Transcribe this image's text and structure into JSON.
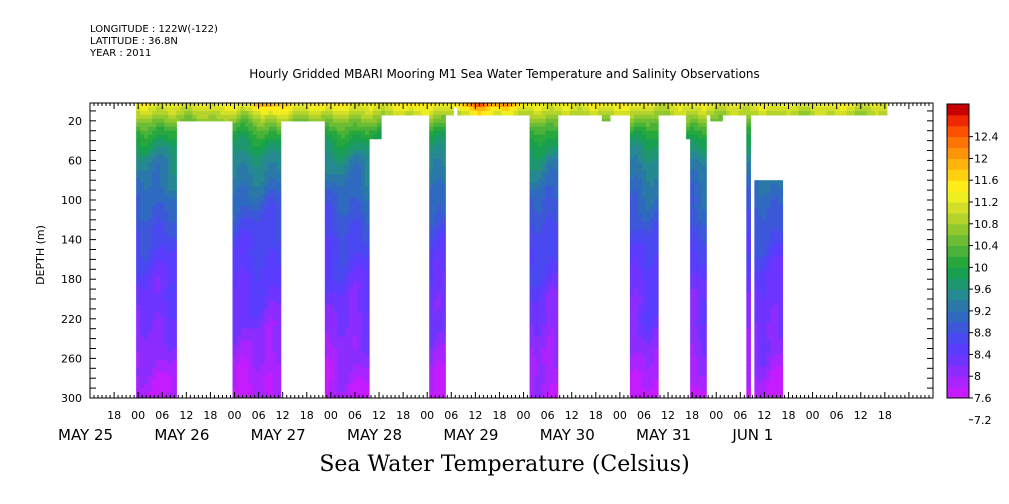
{
  "header": {
    "longitude": "LONGITUDE : 122W(-122)",
    "latitude": "LATITUDE : 36.8N",
    "year": "YEAR : 2011"
  },
  "chart_data": {
    "type": "heatmap",
    "title": "Hourly Gridded MBARI Mooring M1 Sea Water Temperature and Salinity Observations",
    "footer_title": "Sea Water Temperature (Celsius)",
    "ylabel": "DEPTH (m)",
    "ylim": [
      300,
      2
    ],
    "y_ticks": [
      20,
      60,
      100,
      140,
      180,
      220,
      260,
      300
    ],
    "x_unit": "hours since 2011-05-25 00:00",
    "xlim": [
      -12,
      198
    ],
    "x_hour_ticks": [
      {
        "h": -6,
        "label": "18"
      },
      {
        "h": 0,
        "label": "00"
      },
      {
        "h": 6,
        "label": "06"
      },
      {
        "h": 12,
        "label": "12"
      },
      {
        "h": 18,
        "label": "18"
      },
      {
        "h": 24,
        "label": "00"
      },
      {
        "h": 30,
        "label": "06"
      },
      {
        "h": 36,
        "label": "12"
      },
      {
        "h": 42,
        "label": "18"
      },
      {
        "h": 48,
        "label": "00"
      },
      {
        "h": 54,
        "label": "06"
      },
      {
        "h": 60,
        "label": "12"
      },
      {
        "h": 66,
        "label": "18"
      },
      {
        "h": 72,
        "label": "00"
      },
      {
        "h": 78,
        "label": "06"
      },
      {
        "h": 84,
        "label": "12"
      },
      {
        "h": 90,
        "label": "18"
      },
      {
        "h": 96,
        "label": "00"
      },
      {
        "h": 102,
        "label": "06"
      },
      {
        "h": 108,
        "label": "12"
      },
      {
        "h": 114,
        "label": "18"
      },
      {
        "h": 120,
        "label": "00"
      },
      {
        "h": 126,
        "label": "06"
      },
      {
        "h": 132,
        "label": "12"
      },
      {
        "h": 138,
        "label": "18"
      },
      {
        "h": 144,
        "label": "00"
      },
      {
        "h": 150,
        "label": "06"
      },
      {
        "h": 156,
        "label": "12"
      },
      {
        "h": 162,
        "label": "18"
      },
      {
        "h": 168,
        "label": "00"
      },
      {
        "h": 174,
        "label": "06"
      },
      {
        "h": 180,
        "label": "12"
      },
      {
        "h": 186,
        "label": "18"
      }
    ],
    "x_date_labels": [
      {
        "h": -12,
        "label": "MAY 25"
      },
      {
        "h": 12,
        "label": "MAY 26"
      },
      {
        "h": 36,
        "label": "MAY 27"
      },
      {
        "h": 60,
        "label": "MAY 28"
      },
      {
        "h": 84,
        "label": "MAY 29"
      },
      {
        "h": 108,
        "label": "MAY 30"
      },
      {
        "h": 132,
        "label": "MAY 31"
      },
      {
        "h": 156,
        "label": "JUN  1"
      }
    ],
    "colorbar": {
      "levels": [
        7.2,
        7.4,
        7.6,
        7.8,
        8,
        8.2,
        8.4,
        8.6,
        8.8,
        9,
        9.2,
        9.4,
        9.6,
        9.8,
        10,
        10.2,
        10.4,
        10.6,
        10.8,
        11,
        11.2,
        11.4,
        11.6,
        11.8,
        12,
        12.2,
        12.4,
        12.6
      ],
      "labels": [
        7.2,
        7.6,
        8,
        8.4,
        8.8,
        9.2,
        9.6,
        10,
        10.4,
        10.8,
        11.2,
        11.6,
        12,
        12.4
      ],
      "colors": [
        "#c41cff",
        "#a924ff",
        "#8c2cff",
        "#6f34ff",
        "#5a3cff",
        "#4a48f0",
        "#3c58d8",
        "#2f6ac0",
        "#2a78a8",
        "#268890",
        "#1e9670",
        "#18a050",
        "#28a83c",
        "#4ab238",
        "#6cbc34",
        "#90c830",
        "#b4d42c",
        "#d4e028",
        "#eeee20",
        "#ffec18",
        "#ffd010",
        "#ffb40c",
        "#ff9408",
        "#ff7404",
        "#ff5000",
        "#f02800",
        "#c80000"
      ]
    },
    "temperature_profile": {
      "depth": [
        2,
        10,
        20,
        30,
        40,
        50,
        60,
        80,
        100,
        140,
        180,
        220,
        260,
        280,
        300
      ],
      "value": [
        10.9,
        10.6,
        10.2,
        9.8,
        9.5,
        9.3,
        9.1,
        8.9,
        8.65,
        8.3,
        8.05,
        7.85,
        7.6,
        7.45,
        7.35
      ]
    },
    "surface_warm_anomalies": [
      {
        "h": 32,
        "dv": 1.2
      },
      {
        "h": 46,
        "dv": 0.6
      },
      {
        "h": 84,
        "dv": 1.6
      },
      {
        "h": 92,
        "dv": 1.1
      },
      {
        "h": 67,
        "dv": 0.6
      },
      {
        "h": 116,
        "dv": 0.4
      }
    ],
    "data_blocks": [
      {
        "start": -0.5,
        "end": 9.5,
        "top": 2,
        "bottom": 300
      },
      {
        "start": 9.5,
        "end": 23.5,
        "top": 2,
        "bottom": 20
      },
      {
        "start": 23.5,
        "end": 35.5,
        "top": 2,
        "bottom": 300
      },
      {
        "start": 35.5,
        "end": 46.5,
        "top": 2,
        "bottom": 20
      },
      {
        "start": 46.5,
        "end": 57.5,
        "top": 2,
        "bottom": 300
      },
      {
        "start": 57.5,
        "end": 60.5,
        "top": 2,
        "bottom": 38
      },
      {
        "start": 60.5,
        "end": 72.5,
        "top": 2,
        "bottom": 14
      },
      {
        "start": 72.5,
        "end": 76.5,
        "top": 2,
        "bottom": 300
      },
      {
        "start": 76.5,
        "end": 78.5,
        "top": 2,
        "bottom": 14
      },
      {
        "start": 78.5,
        "end": 79.5,
        "top": 2,
        "bottom": 6
      },
      {
        "start": 79.5,
        "end": 80.5,
        "top": 2,
        "bottom": 14
      },
      {
        "start": 80.5,
        "end": 97.5,
        "top": 2,
        "bottom": 14
      },
      {
        "start": 97.5,
        "end": 104.5,
        "top": 2,
        "bottom": 300
      },
      {
        "start": 104.5,
        "end": 115.5,
        "top": 2,
        "bottom": 14
      },
      {
        "start": 115.5,
        "end": 117.5,
        "top": 2,
        "bottom": 20
      },
      {
        "start": 117.5,
        "end": 122.5,
        "top": 2,
        "bottom": 14
      },
      {
        "start": 122.5,
        "end": 129.5,
        "top": 2,
        "bottom": 300
      },
      {
        "start": 129.5,
        "end": 136.5,
        "top": 2,
        "bottom": 14
      },
      {
        "start": 136.5,
        "end": 137.5,
        "top": 2,
        "bottom": 38
      },
      {
        "start": 137.5,
        "end": 141.5,
        "top": 2,
        "bottom": 300
      },
      {
        "start": 141.5,
        "end": 142.5,
        "top": 2,
        "bottom": 14
      },
      {
        "start": 142.5,
        "end": 145.5,
        "top": 2,
        "bottom": 20
      },
      {
        "start": 145.5,
        "end": 151.5,
        "top": 2,
        "bottom": 14
      },
      {
        "start": 151.5,
        "end": 152.5,
        "top": 2,
        "bottom": 300
      },
      {
        "start": 152.5,
        "end": 153.5,
        "top": 2,
        "bottom": 14
      },
      {
        "start": 153.5,
        "end": 160.5,
        "top": 2,
        "bottom": 14
      },
      {
        "start": 153.5,
        "end": 160.5,
        "top": 80,
        "bottom": 300
      },
      {
        "start": 160.5,
        "end": 166.5,
        "top": 2,
        "bottom": 14
      },
      {
        "start": 166.5,
        "end": 186.5,
        "top": 2,
        "bottom": 14
      }
    ]
  }
}
